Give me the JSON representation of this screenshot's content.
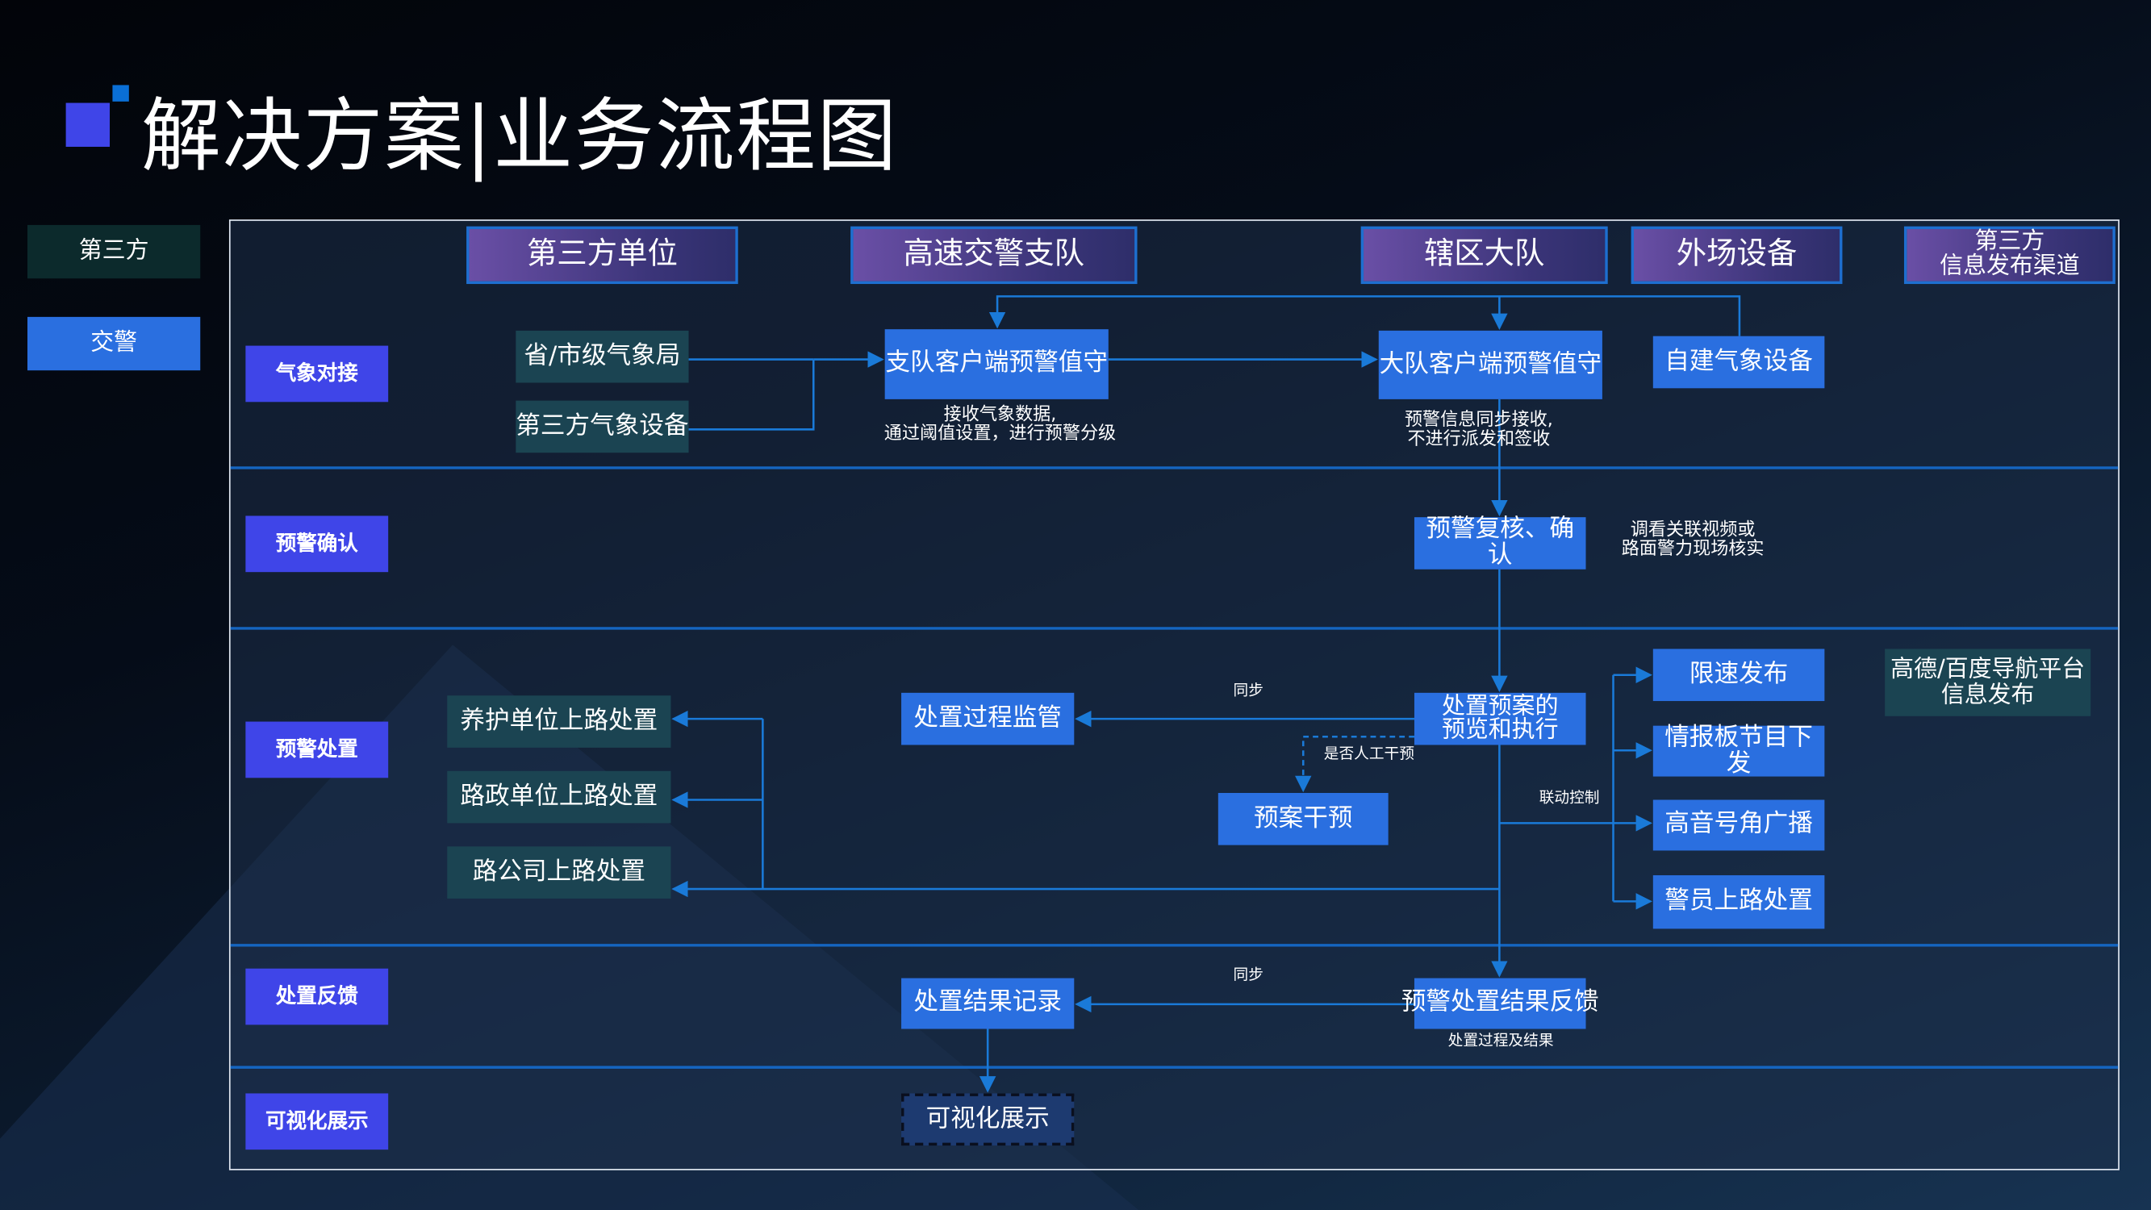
{
  "title": "解决方案|业务流程图",
  "legend": [
    {
      "label": "第三方",
      "color": "#0c2a2c"
    },
    {
      "label": "交警",
      "color": "#2a6fe0"
    }
  ],
  "columns": [
    "第三方单位",
    "高速交警支队",
    "辖区大队",
    "外场设备",
    "第三方\n信息发布渠道"
  ],
  "rows": [
    "气象对接",
    "预警确认",
    "预警处置",
    "处置反馈",
    "可视化展示"
  ],
  "nodes": {
    "provincial_weather": "省/市级气象局",
    "third_party_weather_device": "第三方气象设备",
    "detachment_client": "支队客户端预警值守",
    "brigade_client": "大队客户端预警值守",
    "own_weather_device": "自建气象设备",
    "review_confirm": "预警复核、确认",
    "plan_execute": "处置预案的\n预览和执行",
    "plan_intervene": "预案干预",
    "process_supervise": "处置过程监管",
    "maintenance_onsite": "养护单位上路处置",
    "roadadmin_onsite": "路政单位上路处置",
    "roadcompany_onsite": "路公司上路处置",
    "speed_limit": "限速发布",
    "info_board": "情报板节目下发",
    "loudspeaker": "高音号角广播",
    "police_onsite": "警员上路处置",
    "nav_platform": "高德/百度导航平台\n信息发布",
    "feedback": "预警处置结果反馈",
    "result_record": "处置结果记录",
    "visualization": "可视化展示"
  },
  "captions": {
    "detachment": "接收气象数据,\n通过阈值设置，进行预警分级",
    "brigade": "预警信息同步接收,\n不进行派发和签收",
    "review": "调看关联视频或\n路面警力现场核实",
    "manual": "是否人工干预",
    "linkage": "联动控制",
    "sync1": "同步",
    "sync2": "同步",
    "feedback": "处置过程及结果"
  },
  "colors": {
    "accent": "#2a6fe0",
    "third_party": "#1b4452",
    "row_label": "#3f45e8",
    "line": "#1a6fc8"
  }
}
